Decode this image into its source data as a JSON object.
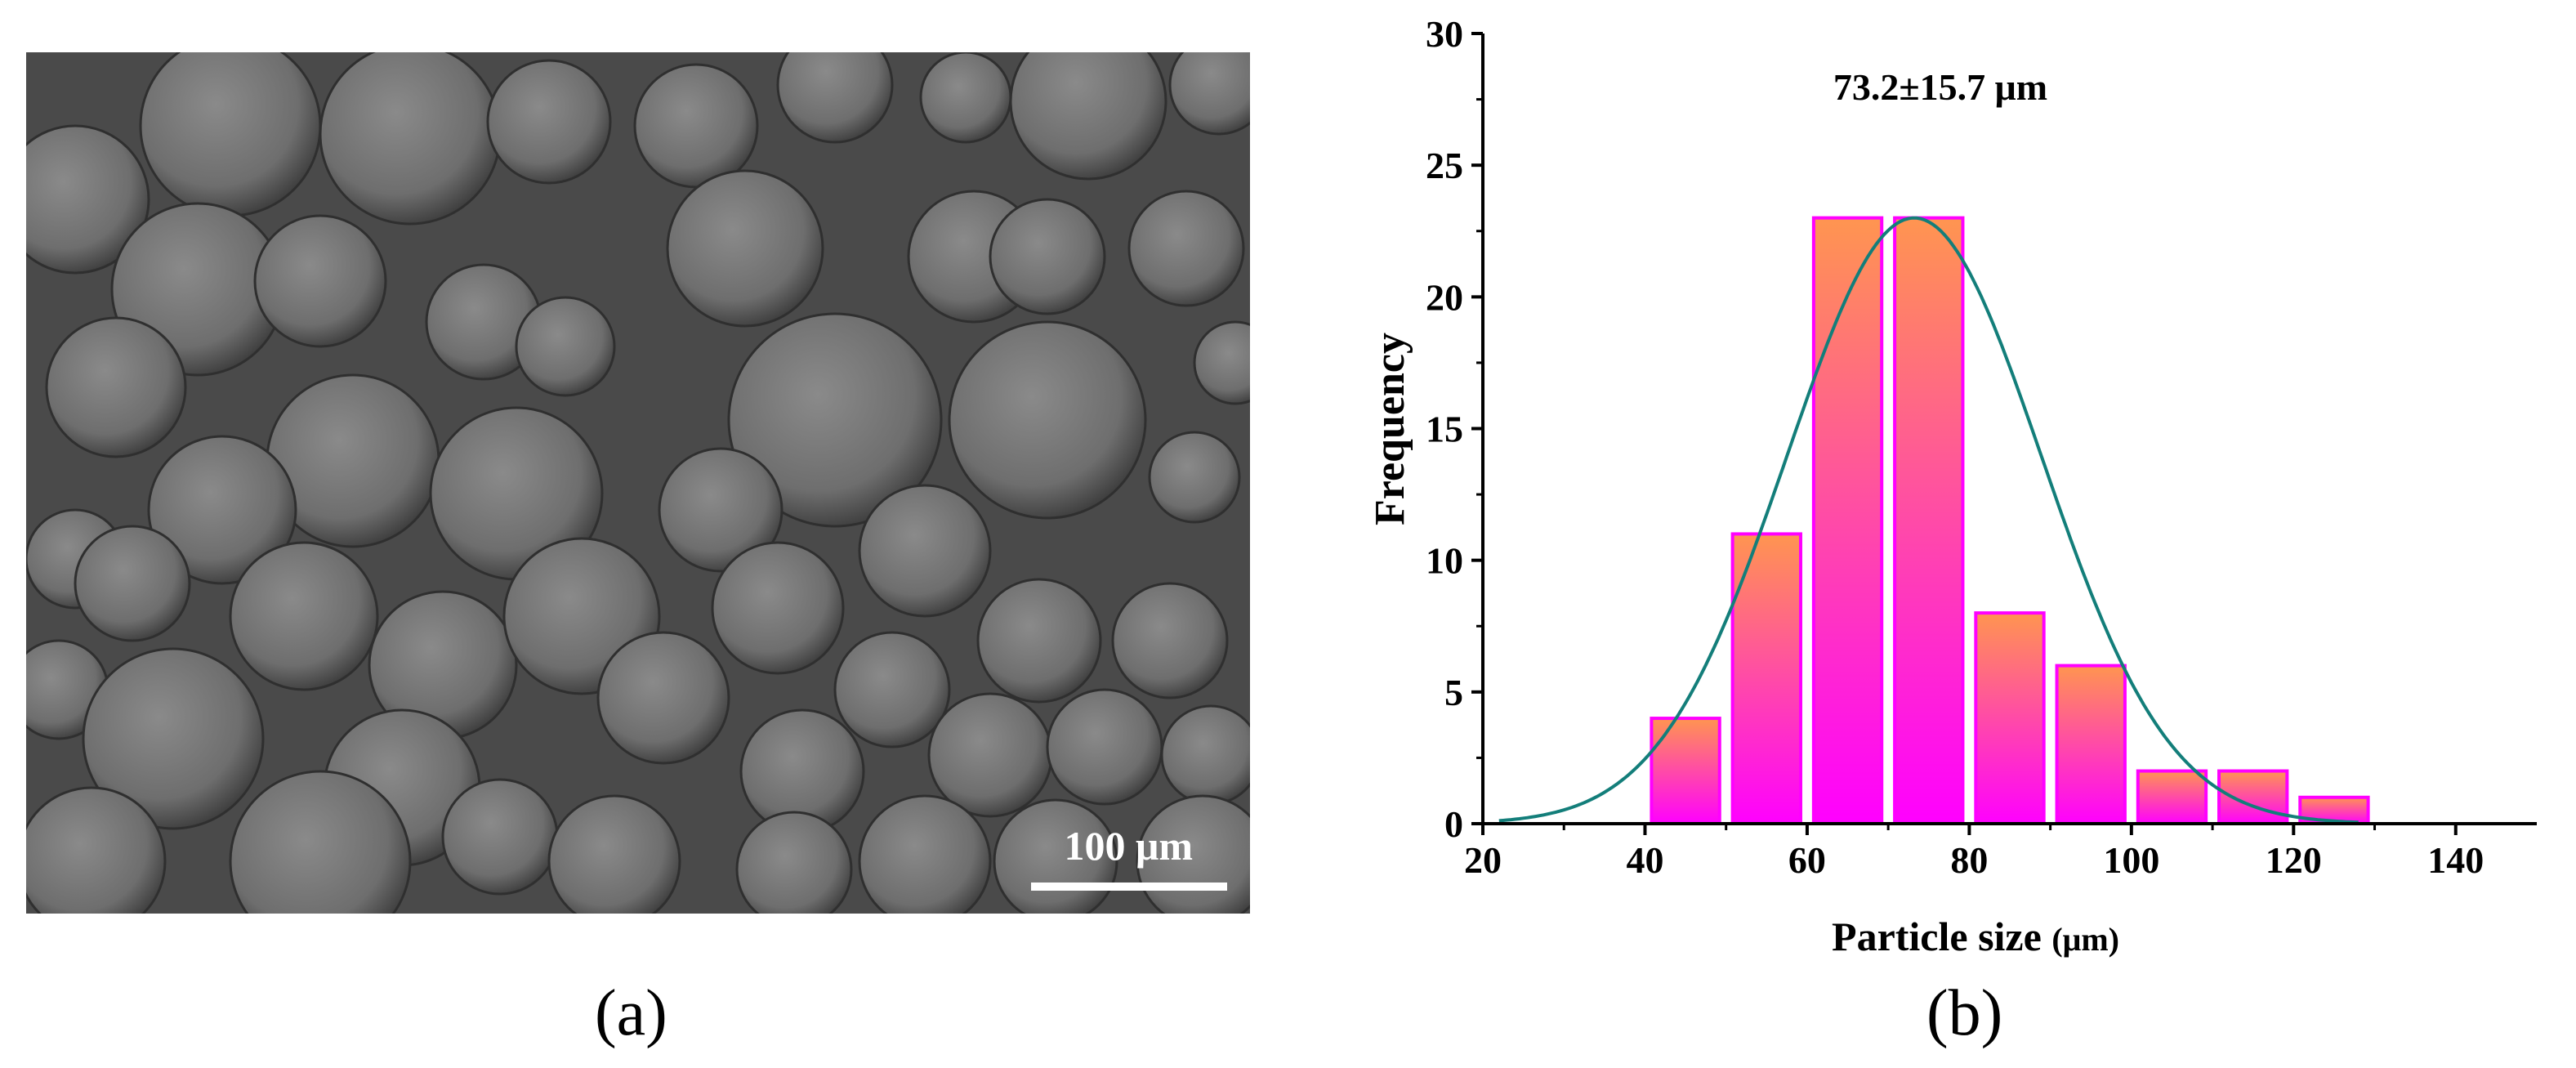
{
  "panels": {
    "a_label": "(a)",
    "b_label": "(b)"
  },
  "micrograph": {
    "scale_bar_label": "100 μm"
  },
  "chart_data": {
    "type": "bar",
    "title": "",
    "annotation": "73.2±15.7 μm",
    "xlabel_main": "Particle size ",
    "xlabel_unit": "(μm)",
    "ylabel": "Frequency",
    "xlim": [
      20,
      150
    ],
    "ylim": [
      0,
      30
    ],
    "x_ticks": [
      20,
      40,
      60,
      80,
      100,
      120,
      140
    ],
    "y_ticks": [
      0,
      5,
      10,
      15,
      20,
      25,
      30
    ],
    "bin_width": 10,
    "bins": [
      {
        "center": 45,
        "value": 4
      },
      {
        "center": 55,
        "value": 11
      },
      {
        "center": 65,
        "value": 23
      },
      {
        "center": 75,
        "value": 23
      },
      {
        "center": 85,
        "value": 8
      },
      {
        "center": 95,
        "value": 6
      },
      {
        "center": 105,
        "value": 2
      },
      {
        "center": 115,
        "value": 2
      },
      {
        "center": 125,
        "value": 1
      }
    ],
    "fit_curve": {
      "type": "normal",
      "mean": 73.2,
      "sd": 15.7,
      "peak": 23,
      "x_range": [
        22,
        128
      ]
    },
    "colors": {
      "bar_top": "#ff9550",
      "bar_bottom": "#ff00ff",
      "bar_stroke": "#ff00ff",
      "curve": "#137e7a",
      "axis": "#000000"
    }
  }
}
